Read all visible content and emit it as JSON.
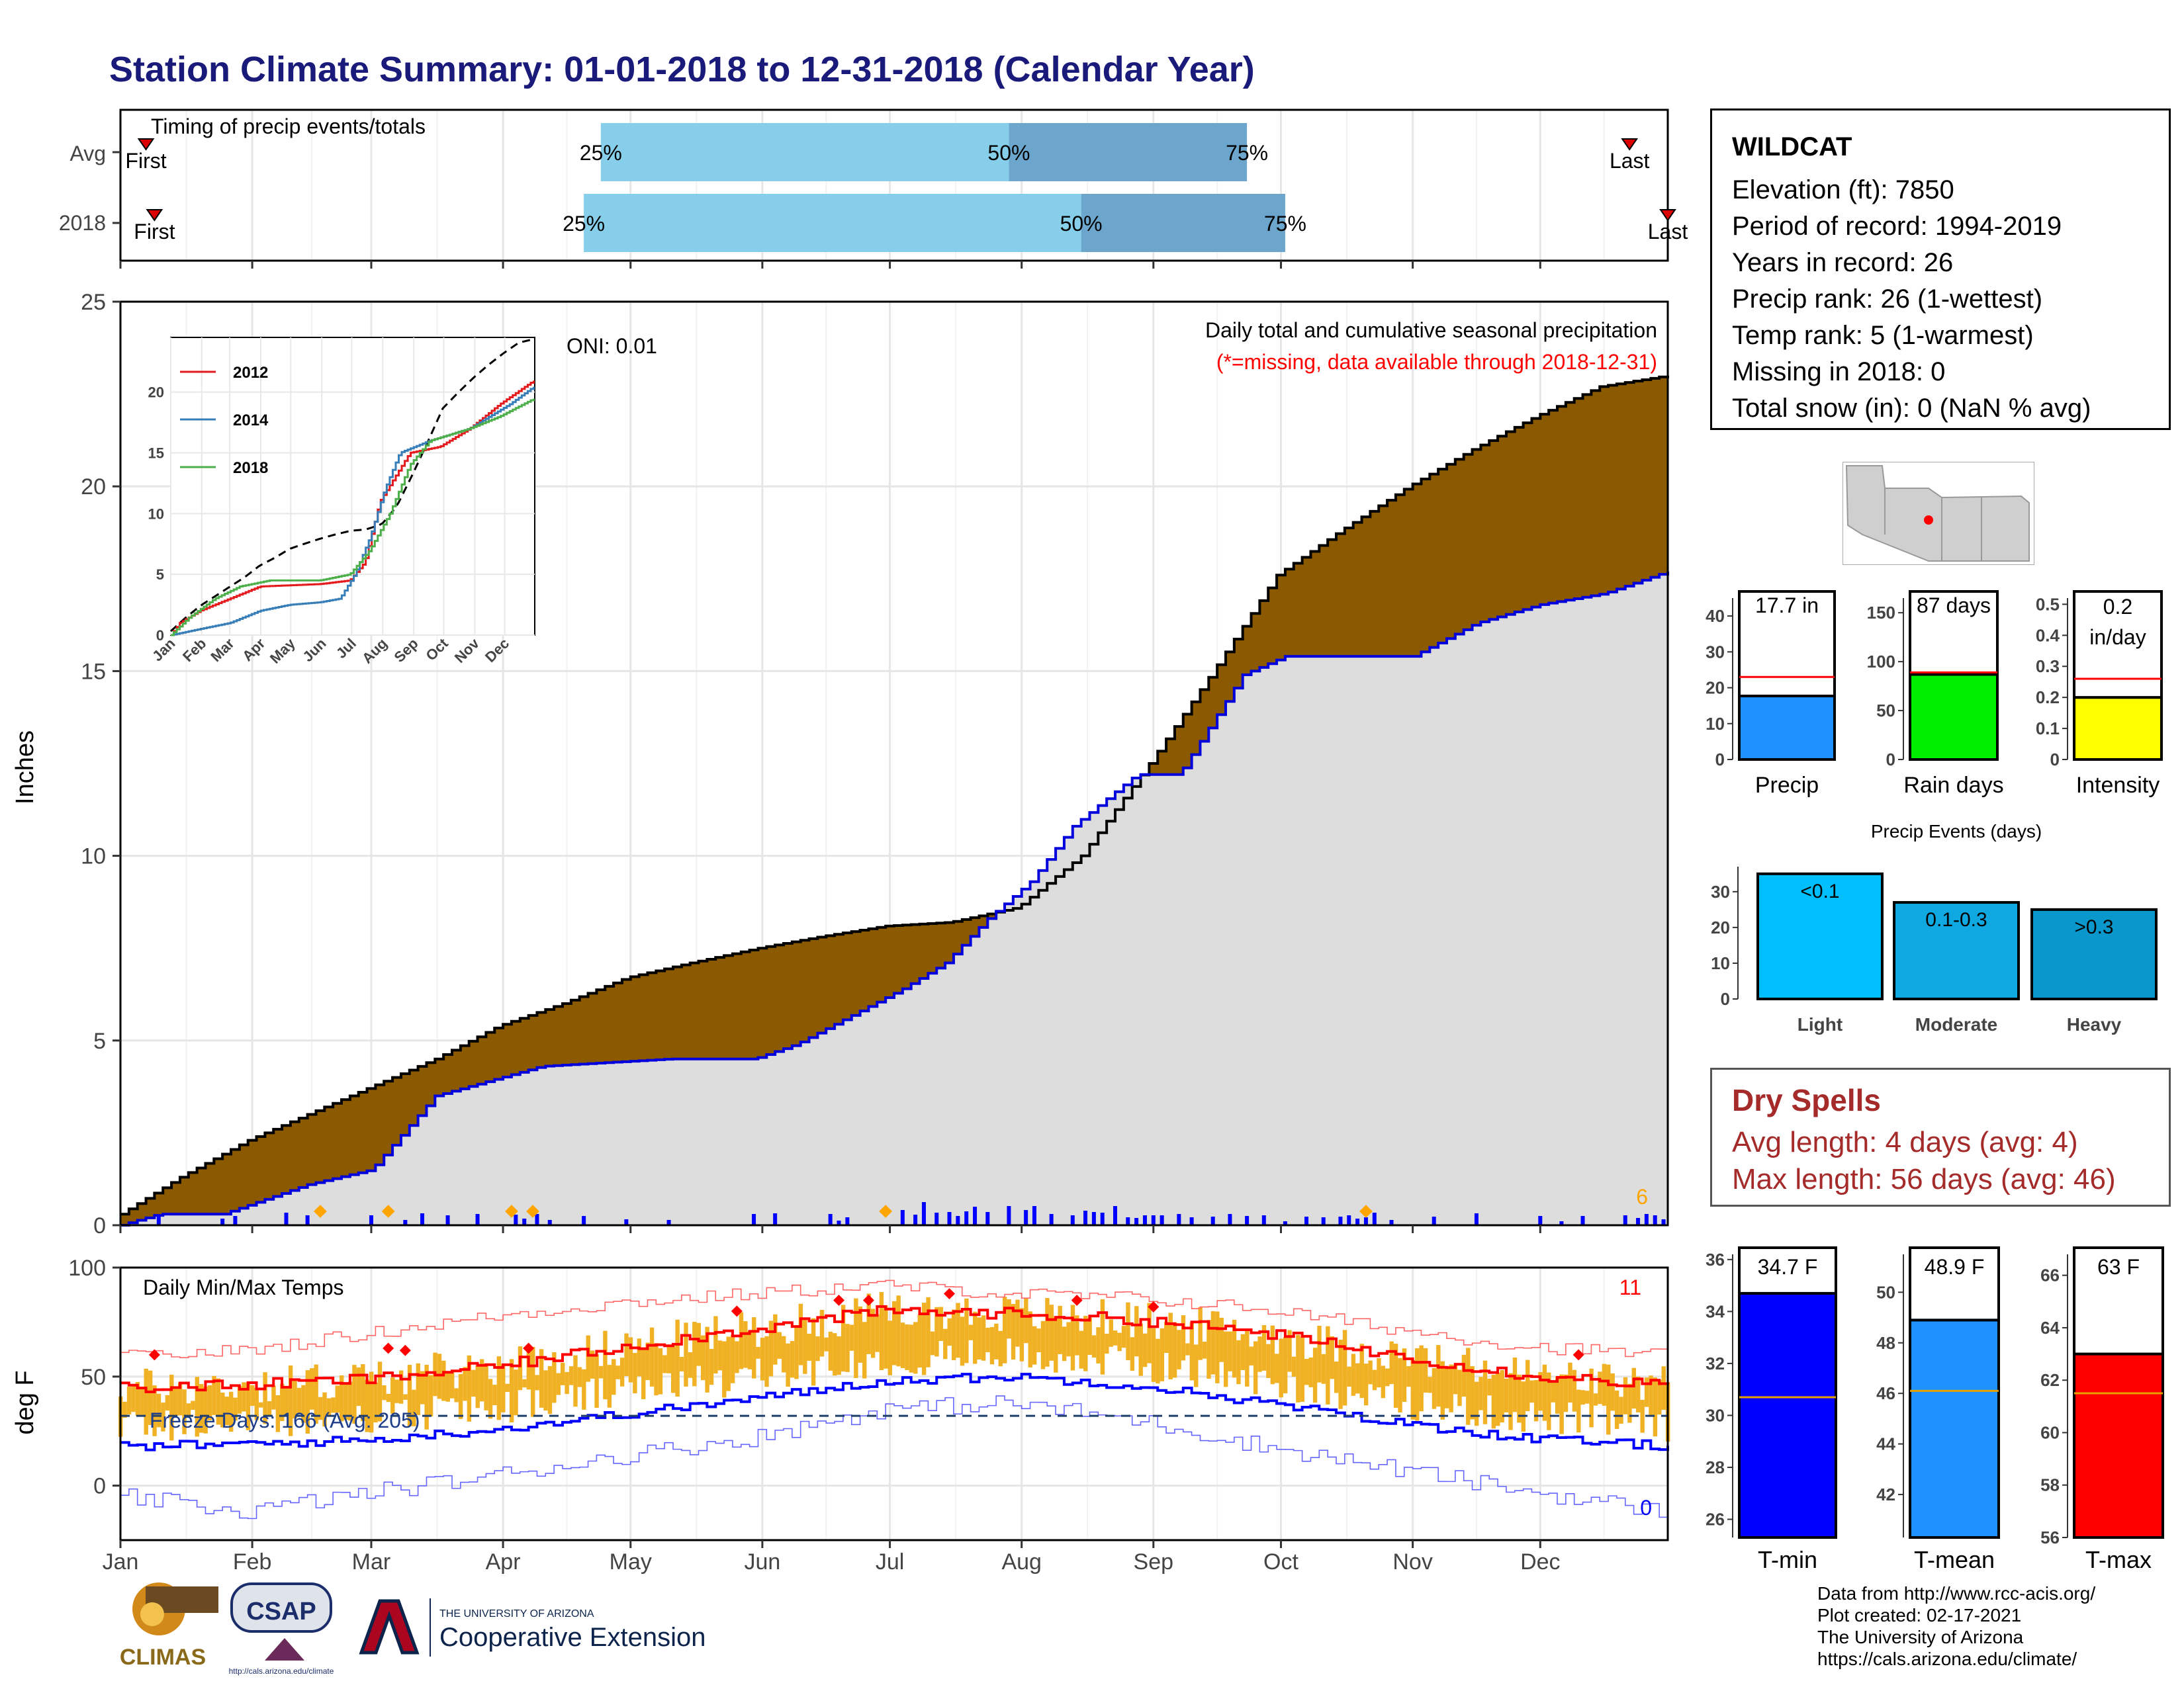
{
  "title": "Station Climate Summary: 01-01-2018 to 12-31-2018 (Calendar Year)",
  "timing": {
    "title": "Timing of precip events/totals",
    "rows": [
      "Avg",
      "2018"
    ],
    "first_label": "First",
    "last_label": "Last",
    "pct_labels": [
      "25%",
      "50%",
      "75%"
    ],
    "avg": {
      "first_doy": 7,
      "q25_doy": 114,
      "q50_doy": 210,
      "q75_doy": 266,
      "last_doy": 356
    },
    "y2018": {
      "first_doy": 9,
      "q25_doy": 110,
      "q50_doy": 227,
      "q75_doy": 275,
      "last_doy": 365
    }
  },
  "month_labels": [
    "Jan",
    "Feb",
    "Mar",
    "Apr",
    "May",
    "Jun",
    "Jul",
    "Aug",
    "Sep",
    "Oct",
    "Nov",
    "Dec"
  ],
  "chart_data": [
    {
      "type": "area",
      "ylabel": "Inches",
      "ylim": [
        0,
        25
      ],
      "yticks": [
        0,
        5,
        10,
        15,
        20,
        25
      ],
      "annot_oni": "ONI: 0.01",
      "annot_title": "Daily total and cumulative seasonal precipitation",
      "annot_missing": "(*=missing, data available through 2018-12-31)",
      "missing_count": "6",
      "series": [
        {
          "name": "avg cumulative",
          "x_doy": [
            1,
            15,
            31,
            45,
            59,
            75,
            90,
            105,
            120,
            135,
            151,
            165,
            181,
            196,
            212,
            227,
            243,
            258,
            273,
            288,
            304,
            319,
            334,
            349,
            365
          ],
          "values": [
            0.3,
            1.3,
            2.3,
            3.0,
            3.7,
            4.5,
            5.4,
            6.0,
            6.7,
            7.1,
            7.5,
            7.8,
            8.1,
            8.2,
            8.6,
            10.0,
            12.5,
            15.0,
            17.6,
            18.8,
            20.0,
            21.0,
            21.9,
            22.7,
            23.0
          ]
        },
        {
          "name": "2018 cumulative",
          "x_doy": [
            1,
            10,
            25,
            45,
            60,
            75,
            100,
            130,
            150,
            160,
            185,
            195,
            205,
            215,
            225,
            240,
            250,
            265,
            275,
            280,
            290,
            305,
            320,
            335,
            350,
            360,
            365
          ],
          "values": [
            0.0,
            0.3,
            0.3,
            1.1,
            1.5,
            3.5,
            4.3,
            4.5,
            4.5,
            4.9,
            6.4,
            7.1,
            8.3,
            9.3,
            10.8,
            12.2,
            12.2,
            14.9,
            15.4,
            15.4,
            15.4,
            15.4,
            16.3,
            16.8,
            17.1,
            17.5,
            17.7
          ]
        }
      ]
    },
    {
      "type": "line",
      "title": "Daily Min/Max Temps",
      "ylabel": "deg F",
      "ylim": [
        -25,
        100
      ],
      "yticks": [
        0,
        50,
        100
      ],
      "freeze_label": "Freeze Days: 166 (Avg: 205)",
      "freeze_line": 32,
      "count_max": "11",
      "count_min": "0",
      "series": [
        {
          "name": "avg max",
          "x_doy": [
            1,
            30,
            60,
            90,
            120,
            150,
            180,
            210,
            240,
            270,
            300,
            330,
            365
          ],
          "values": [
            45,
            46,
            49,
            55,
            64,
            72,
            80,
            79,
            76,
            70,
            60,
            51,
            46
          ]
        },
        {
          "name": "avg min",
          "x_doy": [
            1,
            30,
            60,
            90,
            120,
            150,
            180,
            210,
            240,
            270,
            300,
            330,
            365
          ],
          "values": [
            18,
            19,
            21,
            26,
            33,
            40,
            48,
            50,
            46,
            38,
            29,
            22,
            18
          ]
        },
        {
          "name": "record high",
          "x_doy": [
            1,
            30,
            60,
            90,
            120,
            150,
            180,
            210,
            240,
            270,
            300,
            330,
            365
          ],
          "values": [
            59,
            62,
            70,
            78,
            84,
            88,
            92,
            88,
            86,
            81,
            72,
            64,
            60
          ]
        },
        {
          "name": "record low",
          "x_doy": [
            1,
            30,
            60,
            90,
            120,
            150,
            180,
            210,
            240,
            270,
            300,
            330,
            365
          ],
          "values": [
            -5,
            -12,
            -3,
            5,
            14,
            22,
            35,
            38,
            30,
            18,
            8,
            -2,
            -12
          ]
        }
      ]
    },
    {
      "type": "bar",
      "categories": [
        "Precip",
        "Rain days",
        "Intensity"
      ],
      "values": [
        17.7,
        87,
        0.2
      ],
      "avg_values": [
        23,
        89,
        0.26
      ],
      "value_labels": [
        "17.7 in",
        "87 days",
        "0.2 in/day"
      ],
      "ylims": [
        [
          0,
          45
        ],
        [
          0,
          165
        ],
        [
          0,
          0.52
        ]
      ],
      "yticks": [
        [
          0,
          10,
          20,
          30,
          40
        ],
        [
          0,
          50,
          100,
          150
        ],
        [
          0.0,
          0.1,
          0.2,
          0.3,
          0.4,
          0.5
        ]
      ]
    },
    {
      "type": "bar",
      "title": "Precip Events (days)",
      "categories": [
        "Light",
        "Moderate",
        "Heavy"
      ],
      "values": [
        35,
        27,
        25
      ],
      "value_labels": [
        "<0.1",
        "0.1-0.3",
        ">0.3"
      ],
      "ylim": [
        0,
        37
      ],
      "yticks": [
        0,
        10,
        20,
        30
      ]
    },
    {
      "type": "bar",
      "categories": [
        "T-min",
        "T-mean",
        "T-max"
      ],
      "values": [
        34.7,
        48.9,
        63
      ],
      "avg_values": [
        30.7,
        46.1,
        61.5
      ],
      "value_labels": [
        "34.7 F",
        "48.9 F",
        "63 F"
      ],
      "ylims": [
        [
          25.3,
          36.2
        ],
        [
          40.3,
          51.5
        ],
        [
          56,
          66.8
        ]
      ],
      "yticks": [
        [
          26,
          28,
          30,
          32,
          34,
          36
        ],
        [
          42,
          44,
          46,
          48,
          50
        ],
        [
          56,
          58,
          60,
          62,
          64,
          66
        ]
      ]
    }
  ],
  "station": {
    "name": "WILDCAT",
    "lines": [
      "Elevation (ft): 7850",
      "Period of record: 1994-2019",
      "Years in record: 26",
      "Precip rank: 26 (1-wettest)",
      "Temp rank: 5 (1-warmest)",
      "Missing in 2018: 0",
      "Total snow (in): 0 (NaN % avg)"
    ]
  },
  "dry_spells": {
    "title": "Dry Spells",
    "avg": "Avg length: 4 days (avg: 4)",
    "max": "Max length: 56 days (avg: 46)"
  },
  "credits": [
    "Data from http://www.rcc-acis.org/",
    "Plot created: 02-17-2021",
    "The University of Arizona",
    "https://cals.arizona.edu/climate/"
  ],
  "logos": {
    "climas": "CLIMAS",
    "csap": "CSAP",
    "csap_url": "http://cals.arizona.edu/climate",
    "ua_small": "THE UNIVERSITY OF ARIZONA",
    "ua_big": "Cooperative Extension"
  },
  "colors": {
    "title": "#1a1a7a",
    "avg_fill": "#8b5a00",
    "y2018_line": "#0000dd",
    "area_fill": "#dddddd",
    "temp_bar": "#f0b224",
    "precip_bar": "#1e90ff",
    "raindays_bar": "#00ee00",
    "intensity_bar": "#ffff00",
    "events_light": "#00bfff",
    "events_moderate": "#10a8e0",
    "events_heavy": "#0a98cc",
    "tmin": "#0000ff",
    "tmean": "#1e90ff",
    "tmax": "#ff0000",
    "dry_text": "#a52a2a"
  }
}
